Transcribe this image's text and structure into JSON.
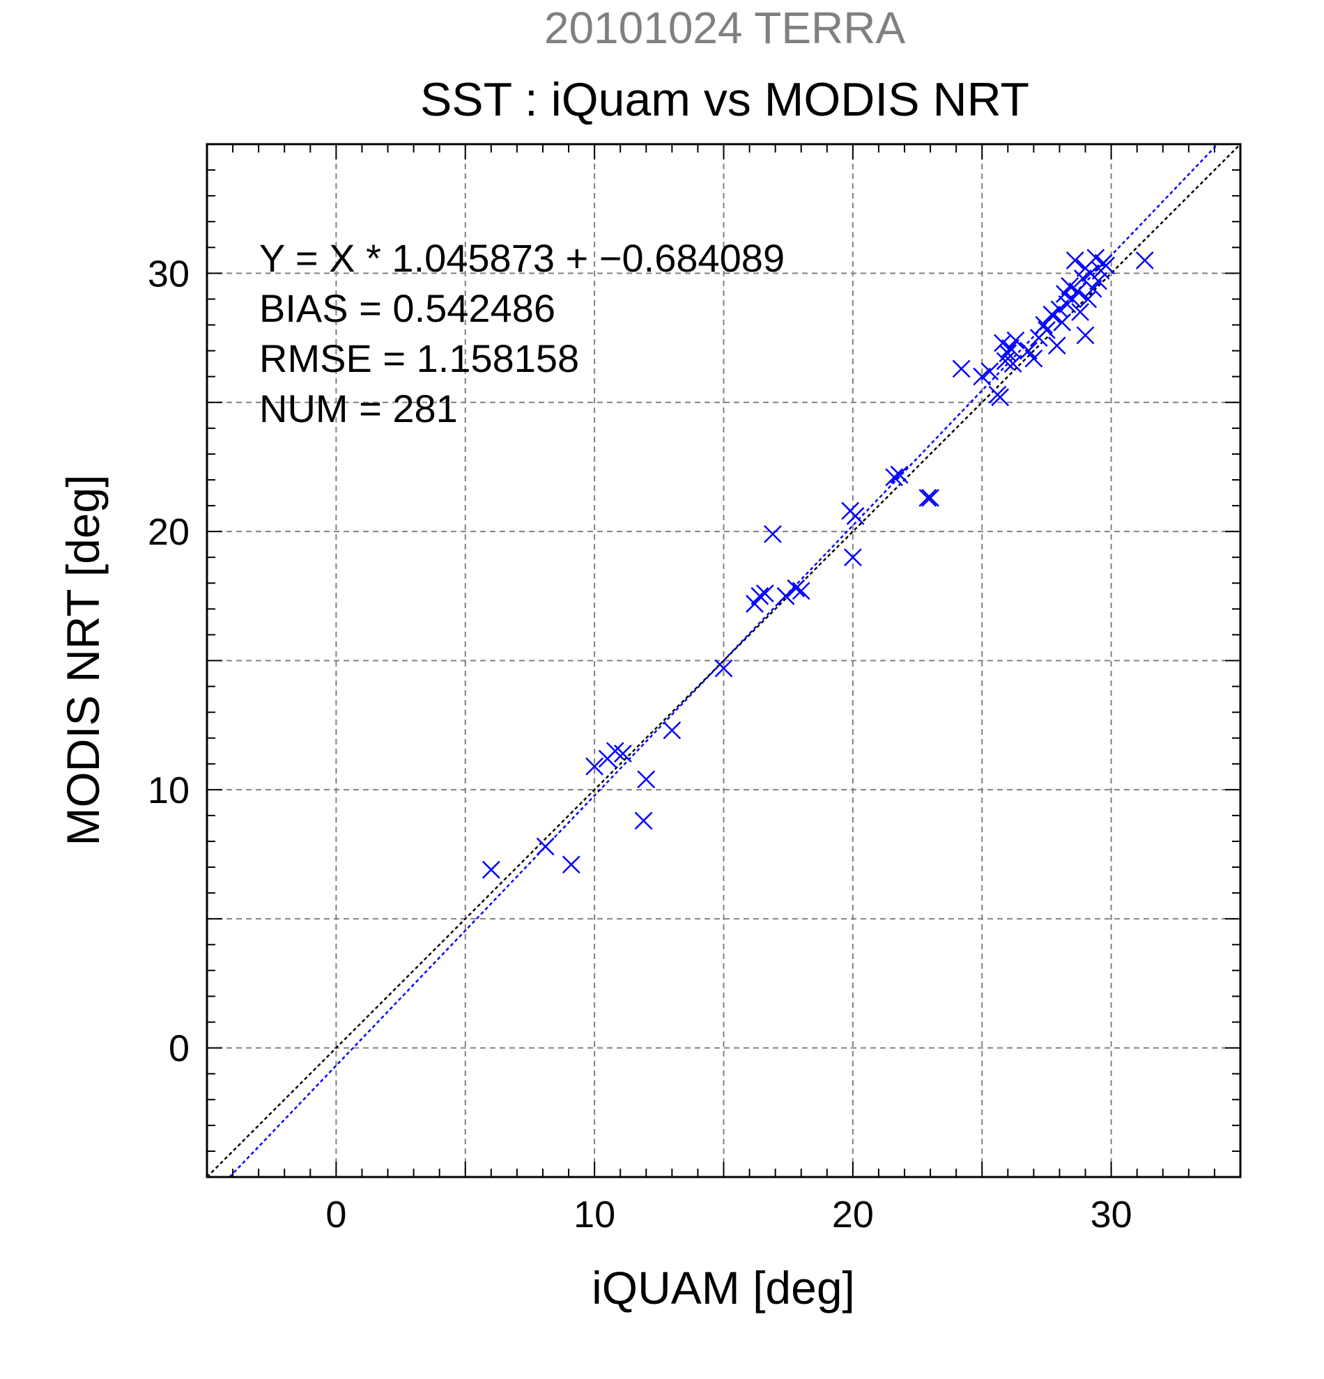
{
  "header": {
    "supertitle": "20101024 TERRA"
  },
  "chart_data": {
    "type": "scatter",
    "title": "SST : iQuam vs MODIS NRT",
    "xlabel": "iQUAM [deg]",
    "ylabel": "MODIS NRT [deg]",
    "xlim": [
      -5,
      35
    ],
    "ylim": [
      -5,
      35
    ],
    "x_ticks": [
      0,
      10,
      20,
      30
    ],
    "y_ticks": [
      0,
      10,
      20,
      30
    ],
    "x_tick_labels": [
      "0",
      "10",
      "20",
      "30"
    ],
    "y_tick_labels": [
      "0",
      "10",
      "20",
      "30"
    ],
    "grid": true,
    "grid_step": 5,
    "annotations": [
      "Y = X * 1.045873 + −0.684089",
      "BIAS = 0.542486",
      "RMSE = 1.158158",
      "NUM = 281"
    ],
    "fit": {
      "slope": 1.045873,
      "intercept": -0.684089
    },
    "colors": {
      "points": "#0000ff",
      "fit_line": "#0000ff",
      "identity_line": "#000000",
      "supertitle": "#808080"
    },
    "marker": "x",
    "points": [
      [
        6.0,
        6.9
      ],
      [
        8.1,
        7.8
      ],
      [
        9.1,
        7.1
      ],
      [
        10.0,
        10.9
      ],
      [
        10.5,
        11.2
      ],
      [
        10.8,
        11.5
      ],
      [
        11.1,
        11.4
      ],
      [
        11.9,
        8.8
      ],
      [
        12.0,
        10.4
      ],
      [
        13.0,
        12.3
      ],
      [
        15.0,
        14.7
      ],
      [
        16.2,
        17.2
      ],
      [
        16.4,
        17.5
      ],
      [
        16.6,
        17.6
      ],
      [
        16.9,
        19.9
      ],
      [
        17.4,
        17.5
      ],
      [
        17.8,
        17.8
      ],
      [
        18.0,
        17.7
      ],
      [
        19.9,
        20.8
      ],
      [
        20.1,
        20.6
      ],
      [
        20.0,
        19.0
      ],
      [
        21.6,
        22.1
      ],
      [
        21.8,
        22.2
      ],
      [
        22.9,
        21.3
      ],
      [
        23.0,
        21.3
      ],
      [
        24.2,
        26.3
      ],
      [
        25.0,
        26.0
      ],
      [
        25.3,
        26.2
      ],
      [
        25.6,
        25.3
      ],
      [
        25.7,
        25.2
      ],
      [
        25.8,
        27.3
      ],
      [
        25.9,
        26.6
      ],
      [
        26.0,
        26.9
      ],
      [
        26.1,
        27.1
      ],
      [
        26.2,
        26.5
      ],
      [
        26.3,
        27.4
      ],
      [
        26.8,
        27.0
      ],
      [
        27.0,
        26.7
      ],
      [
        27.2,
        27.5
      ],
      [
        27.4,
        28.0
      ],
      [
        27.5,
        27.8
      ],
      [
        27.7,
        28.4
      ],
      [
        27.9,
        27.2
      ],
      [
        28.0,
        28.6
      ],
      [
        28.1,
        28.1
      ],
      [
        28.2,
        29.2
      ],
      [
        28.3,
        28.8
      ],
      [
        28.4,
        29.5
      ],
      [
        28.5,
        29.0
      ],
      [
        28.6,
        30.5
      ],
      [
        28.7,
        29.3
      ],
      [
        28.8,
        28.5
      ],
      [
        28.9,
        29.8
      ],
      [
        29.0,
        27.6
      ],
      [
        29.0,
        30.2
      ],
      [
        29.1,
        29.0
      ],
      [
        29.2,
        30.0
      ],
      [
        29.3,
        29.4
      ],
      [
        29.4,
        30.6
      ],
      [
        29.5,
        29.7
      ],
      [
        29.6,
        30.1
      ],
      [
        29.7,
        30.4
      ],
      [
        29.8,
        30.3
      ],
      [
        31.3,
        30.5
      ]
    ]
  }
}
